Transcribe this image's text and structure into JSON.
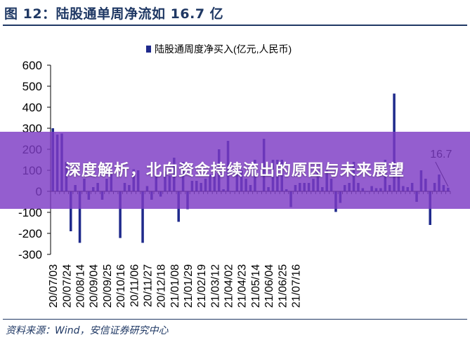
{
  "figure": {
    "title": "图 12：陆股通单周净流如 16.7 亿",
    "source": "资料来源：Wind，安信证券研究中心"
  },
  "banner": {
    "headline": "深度解析，北向资金持续流出的原因与未来展望"
  },
  "colors": {
    "bar": "#1f2a8c",
    "title": "#1f3864",
    "banner_overlay": "#7c3ac4",
    "axis": "#000000"
  },
  "chart_data": {
    "type": "bar",
    "title": "",
    "xlabel": "",
    "ylabel": "",
    "ylim": [
      -300,
      600
    ],
    "yticks": [
      -300,
      -200,
      -100,
      0,
      100,
      200,
      300,
      400,
      500,
      600
    ],
    "grid": false,
    "legend_position": "top-center",
    "series": [
      {
        "name": "陆股通周度净买入(亿元,人民币)",
        "color": "#1f2a8c",
        "values": [
          300,
          270,
          275,
          140,
          -190,
          30,
          -245,
          60,
          -40,
          20,
          40,
          -40,
          60,
          80,
          0,
          -222,
          40,
          30,
          105,
          100,
          -245,
          25,
          -40,
          80,
          -25,
          95,
          75,
          160,
          -145,
          140,
          -85,
          50,
          50,
          40,
          60,
          80,
          85,
          200,
          10,
          240,
          0,
          100,
          100,
          60,
          30,
          150,
          0,
          250,
          20,
          150,
          150,
          150,
          10,
          -75,
          30,
          40,
          40,
          40,
          60,
          100,
          20,
          100,
          60,
          -98,
          -55,
          30,
          40,
          140,
          40,
          15,
          0,
          25,
          15,
          15,
          150,
          30,
          465,
          80,
          25,
          20,
          40,
          -50,
          100,
          60,
          -160,
          40,
          80,
          30,
          17
        ]
      }
    ],
    "x_tick_labels": [
      "20/07/03",
      "20/07/24",
      "20/08/14",
      "20/09/04",
      "20/09/25",
      "20/10/16",
      "20/11/06",
      "20/11/27",
      "20/12/18",
      "21/01/08",
      "21/01/29",
      "21/02/19",
      "21/03/12",
      "21/04/02",
      "21/04/23",
      "21/05/14",
      "21/06/04",
      "21/06/25",
      "21/07/16"
    ],
    "annotations": [
      {
        "text": "16.7",
        "at_value": 16.7
      }
    ]
  }
}
